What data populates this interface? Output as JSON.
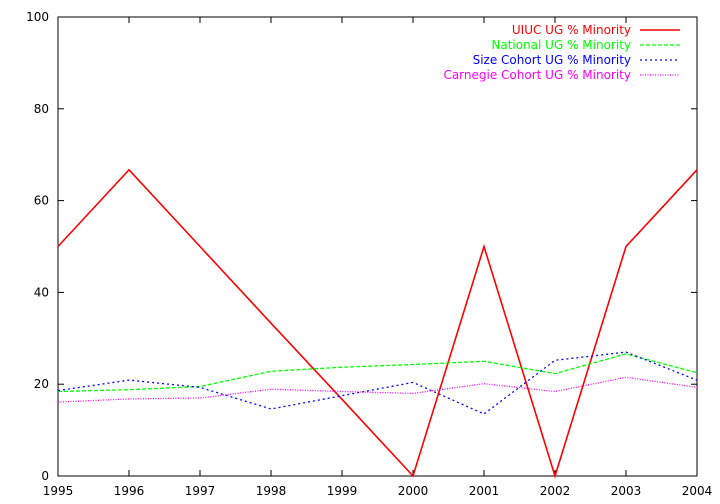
{
  "chart_data": {
    "type": "line",
    "title": "",
    "xlabel": "",
    "ylabel": "",
    "x": [
      1995,
      1996,
      1997,
      1998,
      1999,
      2000,
      2001,
      2002,
      2003,
      2004
    ],
    "xlim": [
      1995,
      2004
    ],
    "ylim": [
      0,
      100
    ],
    "x_ticks": [
      "1995",
      "1996",
      "1997",
      "1998",
      "1999",
      "2000",
      "2001",
      "2002",
      "2003",
      "2004"
    ],
    "y_ticks": [
      "0",
      "20",
      "40",
      "60",
      "80",
      "100"
    ],
    "grid": false,
    "legend_position": "top-right",
    "series": [
      {
        "name": "UIUC UG % Minority",
        "color": "#ff0000",
        "dash": "solid",
        "values": [
          50,
          66.7,
          50,
          33.3,
          16.7,
          0,
          50,
          0,
          50,
          66.7
        ]
      },
      {
        "name": "National UG % Minority",
        "color": "#00ff00",
        "dash": "dashed",
        "values": [
          18.4,
          18.8,
          19.5,
          22.8,
          23.7,
          24.3,
          25.0,
          22.3,
          26.6,
          22.5
        ]
      },
      {
        "name": "Size Cohort UG % Minority",
        "color": "#0000ff",
        "dash": "dotted",
        "values": [
          18.6,
          20.9,
          19.3,
          14.6,
          17.5,
          20.4,
          13.5,
          25.2,
          27.0,
          20.9
        ]
      },
      {
        "name": "Carnegie Cohort UG % Minority",
        "color": "#ff00ff",
        "dash": "finedot",
        "values": [
          16.1,
          16.8,
          17.0,
          18.9,
          18.4,
          18.0,
          20.1,
          18.4,
          21.5,
          19.3
        ]
      }
    ]
  }
}
